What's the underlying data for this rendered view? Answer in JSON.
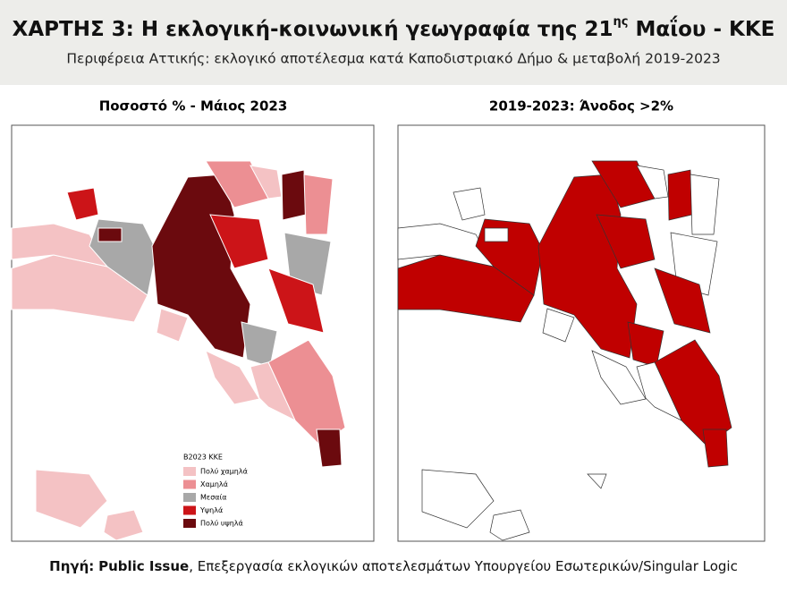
{
  "header": {
    "title_main": "ΧΑΡΤΗΣ 3: Η εκλογική-κοινωνική γεωγραφία της 21",
    "title_sup": "ης",
    "title_end": " Μαΐου - ΚΚΕ",
    "subtitle": "Περιφέρεια Αττικής: εκλογικό αποτέλεσμα κατά Καποδιστριακό Δήμο & μεταβολή 2019-2023"
  },
  "maps": [
    {
      "title": "Ποσοστό % - Μάιος 2023"
    },
    {
      "title": "2019-2023: Άνοδος >2%",
      "color": "#c00000"
    }
  ],
  "legend": {
    "title": "B2023 KKE",
    "items": [
      {
        "label": "Πολύ χαμηλά",
        "color": "#f4c2c4"
      },
      {
        "label": "Χαμηλά",
        "color": "#ec8f93"
      },
      {
        "label": "Μεσαία",
        "color": "#a8a8a8"
      },
      {
        "label": "Υψηλά",
        "color": "#cc1418"
      },
      {
        "label": "Πολύ υψηλά",
        "color": "#6b0a0e"
      }
    ]
  },
  "footer": {
    "source_label": "Πηγή:",
    "source_name": "Public Issue",
    "source_text": ", Επεξεργασία εκλογικών αποτελεσμάτων Υπουργείου Εσωτερικών/Singular Logic"
  }
}
